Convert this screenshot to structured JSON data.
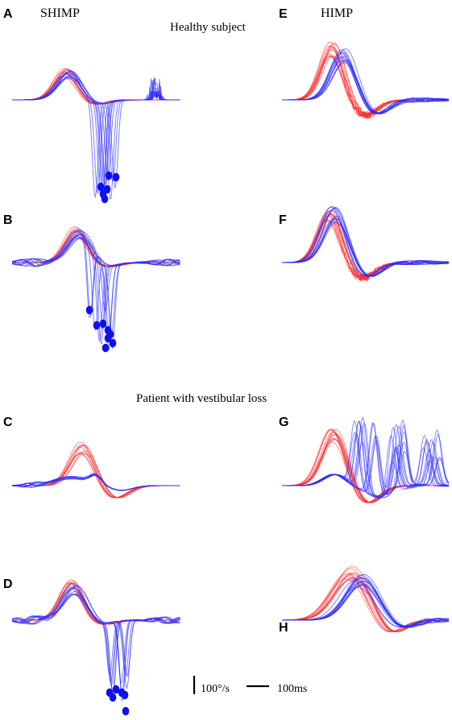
{
  "figure": {
    "column_titles": [
      "SHIMP",
      "HIMP"
    ],
    "section_titles": [
      "Healthy subject",
      "Patient with vestibular loss"
    ],
    "scale_bars": {
      "velocity_label": "100°/s",
      "time_label": "100ms"
    }
  },
  "colors": {
    "head": "#ff2a2a",
    "eye": "#2a2aff",
    "saccade_marker": "#1010ee",
    "text": "#000000"
  },
  "chart_data": [
    {
      "panel": "A",
      "type": "line",
      "column": "SHIMP",
      "group": "Healthy subject",
      "series": [
        {
          "name": "",
          "color": "#ff2a2a",
          "peak_time_ms": 120,
          "peak_velocity": 70
        },
        {
          "name": "",
          "color": "#2a2aff",
          "peak_time_ms": 130,
          "peak_velocity": 65
        }
      ],
      "saccade_velocities": [
        -205,
        -222,
        -208,
        -216,
        -245,
        -190,
        -198,
        -228
      ],
      "grid": false
    },
    {
      "panel": "B",
      "type": "line",
      "column": "SHIMP",
      "group": "Healthy subject",
      "series": [
        {
          "name": "",
          "color": "#ff2a2a",
          "peak_time_ms": 140,
          "peak_velocity": 75
        },
        {
          "name": "",
          "color": "#2a2aff",
          "peak_time_ms": 145,
          "peak_velocity": 80
        }
      ],
      "saccade_velocities": [
        -120,
        -155,
        -150,
        -160,
        -185,
        -175,
        -200,
        -205,
        -195
      ],
      "grid": false
    },
    {
      "panel": "E",
      "type": "line",
      "column": "HIMP",
      "group": "Healthy subject",
      "series": [
        {
          "name": "",
          "color": "#ff2a2a",
          "peak_time_ms": 120,
          "peak_velocity": 140
        },
        {
          "name": "",
          "color": "#2a2aff",
          "peak_time_ms": 135,
          "peak_velocity": 120
        }
      ],
      "grid": false
    },
    {
      "panel": "F",
      "type": "line",
      "column": "HIMP",
      "group": "Healthy subject",
      "series": [
        {
          "name": "",
          "color": "#ff2a2a",
          "peak_time_ms": 120,
          "peak_velocity": 135
        },
        {
          "name": "",
          "color": "#2a2aff",
          "peak_time_ms": 125,
          "peak_velocity": 140
        }
      ],
      "grid": false
    },
    {
      "panel": "C",
      "type": "line",
      "column": "SHIMP",
      "group": "Patient with vestibular loss",
      "series": [
        {
          "name": "",
          "color": "#ff2a2a",
          "peak_time_ms": 175,
          "peak_velocity": 100
        },
        {
          "name": "",
          "color": "#2a2aff",
          "peak_time_ms": 140,
          "peak_velocity": 20
        }
      ],
      "grid": false
    },
    {
      "panel": "D",
      "type": "line",
      "column": "SHIMP",
      "group": "Patient with vestibular loss",
      "series": [
        {
          "name": "",
          "color": "#ff2a2a",
          "peak_time_ms": 130,
          "peak_velocity": 95
        },
        {
          "name": "",
          "color": "#2a2aff",
          "peak_time_ms": 135,
          "peak_velocity": 80
        }
      ],
      "saccade_velocities": [
        -175,
        -170,
        -180,
        -180,
        -185,
        -200
      ],
      "grid": false
    },
    {
      "panel": "G",
      "type": "line",
      "column": "HIMP",
      "group": "Patient with vestibular loss",
      "series": [
        {
          "name": "",
          "color": "#ff2a2a",
          "peak_time_ms": 115,
          "peak_velocity": 140
        },
        {
          "name": "",
          "color": "#2a2aff",
          "peak_time_ms": 120,
          "peak_velocity": 35
        }
      ],
      "grid": false
    },
    {
      "panel": "H",
      "type": "line",
      "column": "HIMP",
      "group": "Patient with vestibular loss",
      "series": [
        {
          "name": "",
          "color": "#ff2a2a",
          "peak_time_ms": 185,
          "peak_velocity": 140
        },
        {
          "name": "",
          "color": "#2a2aff",
          "peak_time_ms": 200,
          "peak_velocity": 120
        }
      ],
      "grid": false
    }
  ]
}
